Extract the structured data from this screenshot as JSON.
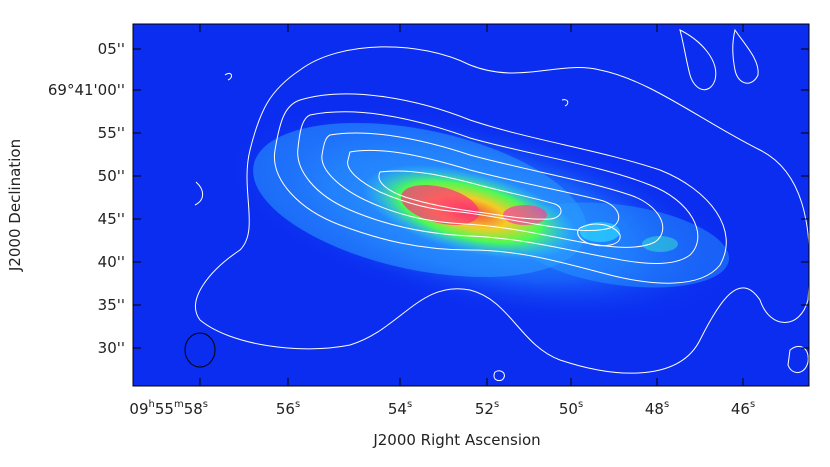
{
  "figure": {
    "xlabel": "J2000 Right Ascension",
    "ylabel": "J2000 Declination",
    "x_ticks": [
      {
        "base": "09",
        "sup1": "h",
        "mid": "55",
        "sup2": "m",
        "end": "58",
        "sup3": "s"
      },
      {
        "base": "56",
        "sup3": "s"
      },
      {
        "base": "54",
        "sup3": "s"
      },
      {
        "base": "52",
        "sup3": "s"
      },
      {
        "base": "50",
        "sup3": "s"
      },
      {
        "base": "48",
        "sup3": "s"
      },
      {
        "base": "46",
        "sup3": "s"
      }
    ],
    "y_ticks": [
      {
        "text": "05''"
      },
      {
        "text": "69°41'00''"
      },
      {
        "text": "55''"
      },
      {
        "text": "50''"
      },
      {
        "text": "45''"
      },
      {
        "text": "40''"
      },
      {
        "text": "35''"
      },
      {
        "text": "30''"
      }
    ],
    "colors": {
      "background": "#0b2df0",
      "contour": "#ffffff",
      "frame": "#000000"
    }
  }
}
